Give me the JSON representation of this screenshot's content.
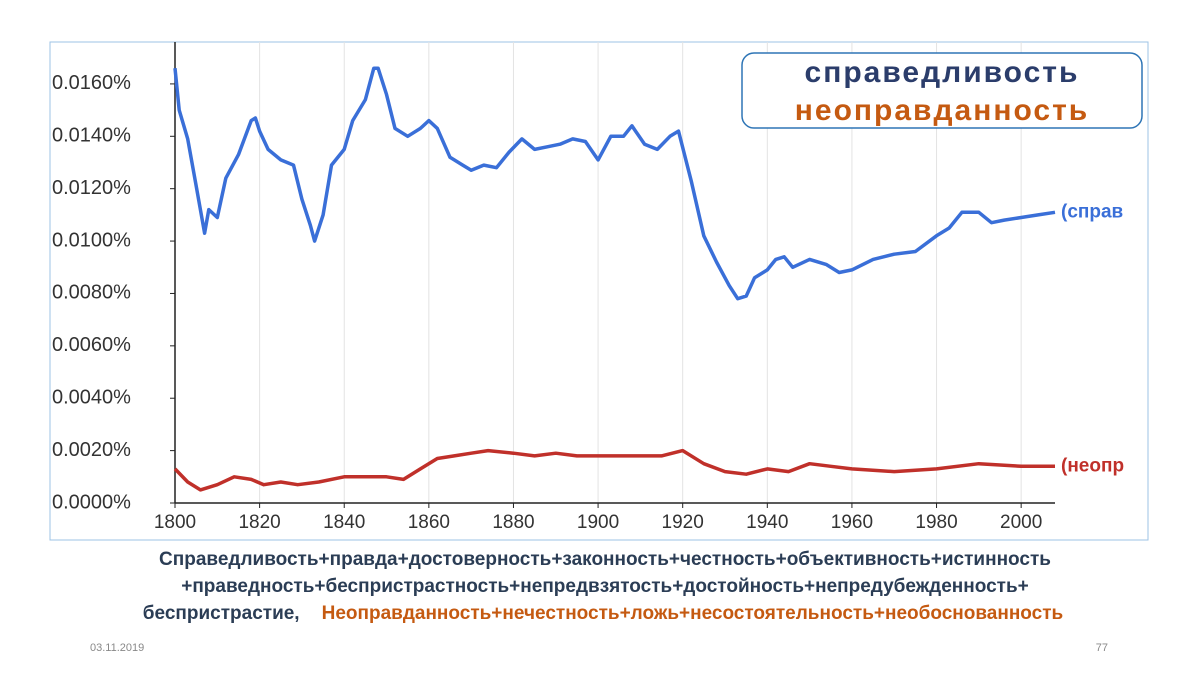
{
  "chart_data": {
    "type": "line",
    "xlim": [
      1800,
      2008
    ],
    "xticks": [
      1800,
      1820,
      1840,
      1860,
      1880,
      1900,
      1920,
      1940,
      1960,
      1980,
      2000
    ],
    "ylim": [
      0,
      0.0176
    ],
    "yticks": [
      {
        "value": 0,
        "label": "0.0000%"
      },
      {
        "value": 0.002,
        "label": "0.0020%"
      },
      {
        "value": 0.004,
        "label": "0.0040%"
      },
      {
        "value": 0.006,
        "label": "0.0060%"
      },
      {
        "value": 0.008,
        "label": "0.0080%"
      },
      {
        "value": 0.01,
        "label": "0.0100%"
      },
      {
        "value": 0.012,
        "label": "0.0120%"
      },
      {
        "value": 0.014,
        "label": "0.0140%"
      },
      {
        "value": 0.016,
        "label": "0.0160%"
      }
    ],
    "grid": "x",
    "series": [
      {
        "name": "справедливость",
        "legend_color": "#2b3d6b",
        "color": "#3a6fd8",
        "end_label": "(справ",
        "x": [
          1800,
          1801,
          1803,
          1805,
          1807,
          1808,
          1810,
          1812,
          1815,
          1818,
          1819,
          1820,
          1822,
          1825,
          1828,
          1830,
          1832,
          1833,
          1835,
          1837,
          1840,
          1842,
          1845,
          1847,
          1848,
          1850,
          1852,
          1855,
          1858,
          1860,
          1862,
          1865,
          1868,
          1870,
          1873,
          1876,
          1879,
          1882,
          1885,
          1888,
          1891,
          1894,
          1897,
          1900,
          1903,
          1906,
          1908,
          1911,
          1914,
          1917,
          1919,
          1922,
          1925,
          1928,
          1931,
          1933,
          1935,
          1937,
          1940,
          1942,
          1944,
          1946,
          1950,
          1954,
          1957,
          1960,
          1965,
          1970,
          1975,
          1980,
          1983,
          1986,
          1990,
          1993,
          1996,
          2000,
          2004,
          2008
        ],
        "values": [
          0.0166,
          0.015,
          0.0139,
          0.0121,
          0.0103,
          0.0112,
          0.0109,
          0.0124,
          0.0133,
          0.0146,
          0.0147,
          0.0142,
          0.0135,
          0.0131,
          0.0129,
          0.0116,
          0.0106,
          0.01,
          0.011,
          0.0129,
          0.0135,
          0.0146,
          0.0154,
          0.0166,
          0.0166,
          0.0156,
          0.0143,
          0.014,
          0.0143,
          0.0146,
          0.0143,
          0.0132,
          0.0129,
          0.0127,
          0.0129,
          0.0128,
          0.0134,
          0.0139,
          0.0135,
          0.0136,
          0.0137,
          0.0139,
          0.0138,
          0.0131,
          0.014,
          0.014,
          0.0144,
          0.0137,
          0.0135,
          0.014,
          0.0142,
          0.0123,
          0.0102,
          0.0092,
          0.0083,
          0.0078,
          0.0079,
          0.0086,
          0.0089,
          0.0093,
          0.0094,
          0.009,
          0.0093,
          0.0091,
          0.0088,
          0.0089,
          0.0093,
          0.0095,
          0.0096,
          0.0102,
          0.0105,
          0.0111,
          0.0111,
          0.0107,
          0.0108,
          0.0109,
          0.011,
          0.0111
        ]
      },
      {
        "name": "неоправданность",
        "legend_color": "#c55a11",
        "color": "#c0302a",
        "end_label": "(неопр",
        "x": [
          1800,
          1803,
          1806,
          1810,
          1814,
          1818,
          1821,
          1825,
          1829,
          1834,
          1840,
          1845,
          1850,
          1854,
          1858,
          1862,
          1866,
          1870,
          1874,
          1880,
          1885,
          1890,
          1895,
          1900,
          1905,
          1910,
          1915,
          1920,
          1925,
          1930,
          1935,
          1940,
          1945,
          1950,
          1955,
          1960,
          1970,
          1980,
          1990,
          2000,
          2008
        ],
        "values": [
          0.0013,
          0.0008,
          0.0005,
          0.0007,
          0.001,
          0.0009,
          0.0007,
          0.0008,
          0.0007,
          0.0008,
          0.001,
          0.001,
          0.001,
          0.0009,
          0.0013,
          0.0017,
          0.0018,
          0.0019,
          0.002,
          0.0019,
          0.0018,
          0.0019,
          0.0018,
          0.0018,
          0.0018,
          0.0018,
          0.0018,
          0.002,
          0.0015,
          0.0012,
          0.0011,
          0.0013,
          0.0012,
          0.0015,
          0.0014,
          0.0013,
          0.0012,
          0.0013,
          0.0015,
          0.0014,
          0.0014
        ]
      }
    ]
  },
  "caption": {
    "line1": "Справедливость+правда+достоверность+законность+честность+объективность+истинность",
    "line2": "+праведность+беспристрастность+непредвзятость+достойность+непредубежденность+",
    "line3": "беспристрастие,",
    "highlight": "Неоправданность+нечестность+ложь+несостоятельность+необоснованность"
  },
  "footer": {
    "date": "03.11.2019",
    "page": "77"
  }
}
